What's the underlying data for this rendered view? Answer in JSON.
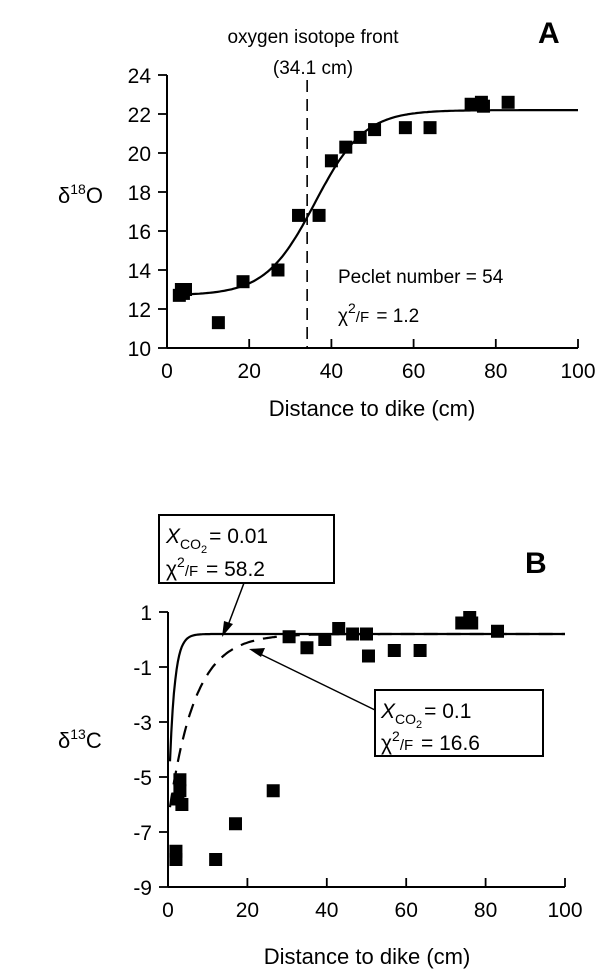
{
  "chart_data": [
    {
      "panel": "A",
      "type": "scatter",
      "panel_label": "A",
      "xlabel": "Distance to dike (cm)",
      "ylabel": "δ18O",
      "xlim": [
        0,
        100
      ],
      "ylim": [
        10,
        24
      ],
      "x_ticks": [
        "0",
        "20",
        "40",
        "60",
        "80",
        "100"
      ],
      "y_ticks": [
        "10",
        "12",
        "14",
        "16",
        "18",
        "20",
        "22",
        "24"
      ],
      "front_label_1": "oxygen isotope front",
      "front_label_2": "(34.1 cm)",
      "front_x": 34.1,
      "annotation_1": "Peclet number = 54",
      "annotation_2": "χ2/F = 1.2",
      "points": [
        {
          "x": 3,
          "y": 12.7
        },
        {
          "x": 3.5,
          "y": 13.0
        },
        {
          "x": 4,
          "y": 12.8
        },
        {
          "x": 4.5,
          "y": 13.0
        },
        {
          "x": 12.5,
          "y": 11.3
        },
        {
          "x": 18.5,
          "y": 13.4
        },
        {
          "x": 27,
          "y": 14.0
        },
        {
          "x": 32,
          "y": 16.8
        },
        {
          "x": 37,
          "y": 16.8
        },
        {
          "x": 40,
          "y": 19.6
        },
        {
          "x": 43.5,
          "y": 20.3
        },
        {
          "x": 47,
          "y": 20.8
        },
        {
          "x": 50.5,
          "y": 21.2
        },
        {
          "x": 58,
          "y": 21.3
        },
        {
          "x": 64,
          "y": 21.3
        },
        {
          "x": 74,
          "y": 22.5
        },
        {
          "x": 76.5,
          "y": 22.6
        },
        {
          "x": 77,
          "y": 22.4
        },
        {
          "x": 83,
          "y": 22.6
        }
      ],
      "fit_curve": {
        "low": 12.7,
        "high": 22.2,
        "center": 36,
        "width": 6
      }
    },
    {
      "panel": "B",
      "type": "scatter",
      "panel_label": "B",
      "xlabel": "Distance to dike (cm)",
      "ylabel": "δ13C",
      "xlim": [
        0,
        100
      ],
      "ylim": [
        -9,
        1
      ],
      "x_ticks": [
        "0",
        "20",
        "40",
        "60",
        "80",
        "100"
      ],
      "y_ticks": [
        "1",
        "-1",
        "-3",
        "-5",
        "-7",
        "-9"
      ],
      "box1_label": "X",
      "box1_sub": "CO2",
      "box1_value": "= 0.01",
      "box1_chi": "χ2/F = 58.2",
      "box2_label": "X",
      "box2_sub": "CO2",
      "box2_value": "= 0.1",
      "box2_chi": "χ2/F = 16.6",
      "points": [
        {
          "x": 2,
          "y": -7.7
        },
        {
          "x": 2,
          "y": -8.0
        },
        {
          "x": 2.5,
          "y": -5.8
        },
        {
          "x": 3,
          "y": -5.1
        },
        {
          "x": 3,
          "y": -5.5
        },
        {
          "x": 3.5,
          "y": -6.0
        },
        {
          "x": 12,
          "y": -8.0
        },
        {
          "x": 17,
          "y": -6.7
        },
        {
          "x": 26.5,
          "y": -5.5
        },
        {
          "x": 30.5,
          "y": 0.1
        },
        {
          "x": 35,
          "y": -0.3
        },
        {
          "x": 39.5,
          "y": 0.0
        },
        {
          "x": 43,
          "y": 0.4
        },
        {
          "x": 46.5,
          "y": 0.2
        },
        {
          "x": 50,
          "y": 0.2
        },
        {
          "x": 50.5,
          "y": -0.6
        },
        {
          "x": 57,
          "y": -0.4
        },
        {
          "x": 63.5,
          "y": -0.4
        },
        {
          "x": 74,
          "y": 0.6
        },
        {
          "x": 76,
          "y": 0.8
        },
        {
          "x": 76.5,
          "y": 0.6
        },
        {
          "x": 83,
          "y": 0.3
        }
      ],
      "fit_solid": {
        "low": -6.6,
        "high": 0.2,
        "scale": 1.3
      },
      "fit_dashed": {
        "low": -6.6,
        "high": 0.2,
        "scale": 6.5
      }
    }
  ]
}
